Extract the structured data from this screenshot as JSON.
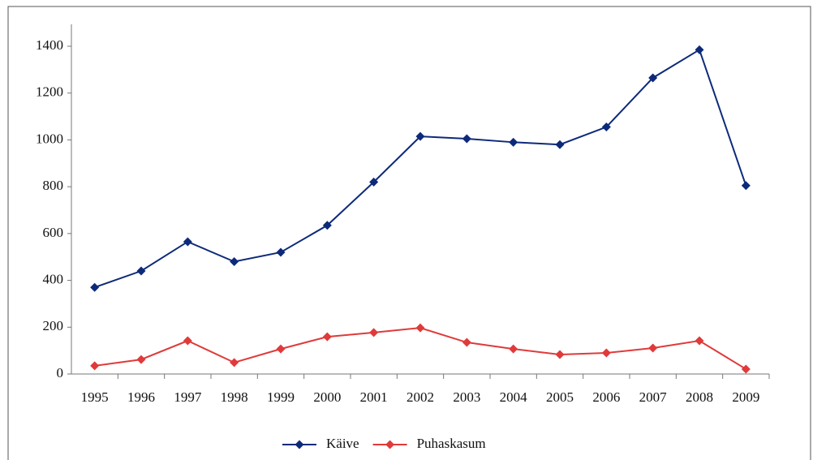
{
  "chart_data": {
    "type": "line",
    "categories": [
      "1995",
      "1996",
      "1997",
      "1998",
      "1999",
      "2000",
      "2001",
      "2002",
      "2003",
      "2004",
      "2005",
      "2006",
      "2007",
      "2008",
      "2009"
    ],
    "series": [
      {
        "name": "Käive",
        "color": "#0d2a7a",
        "values": [
          370,
          440,
          565,
          480,
          520,
          635,
          820,
          1015,
          1005,
          990,
          980,
          1055,
          1265,
          1385,
          805
        ]
      },
      {
        "name": "Puhaskasum",
        "color": "#e03a3a",
        "values": [
          35,
          62,
          142,
          49,
          107,
          159,
          177,
          197,
          135,
          107,
          83,
          90,
          111,
          142,
          21
        ]
      }
    ],
    "ylim": [
      0,
      1400
    ],
    "yticks": [
      0,
      200,
      400,
      600,
      800,
      1000,
      1200,
      1400
    ],
    "grid": false,
    "legend": "bottom"
  }
}
